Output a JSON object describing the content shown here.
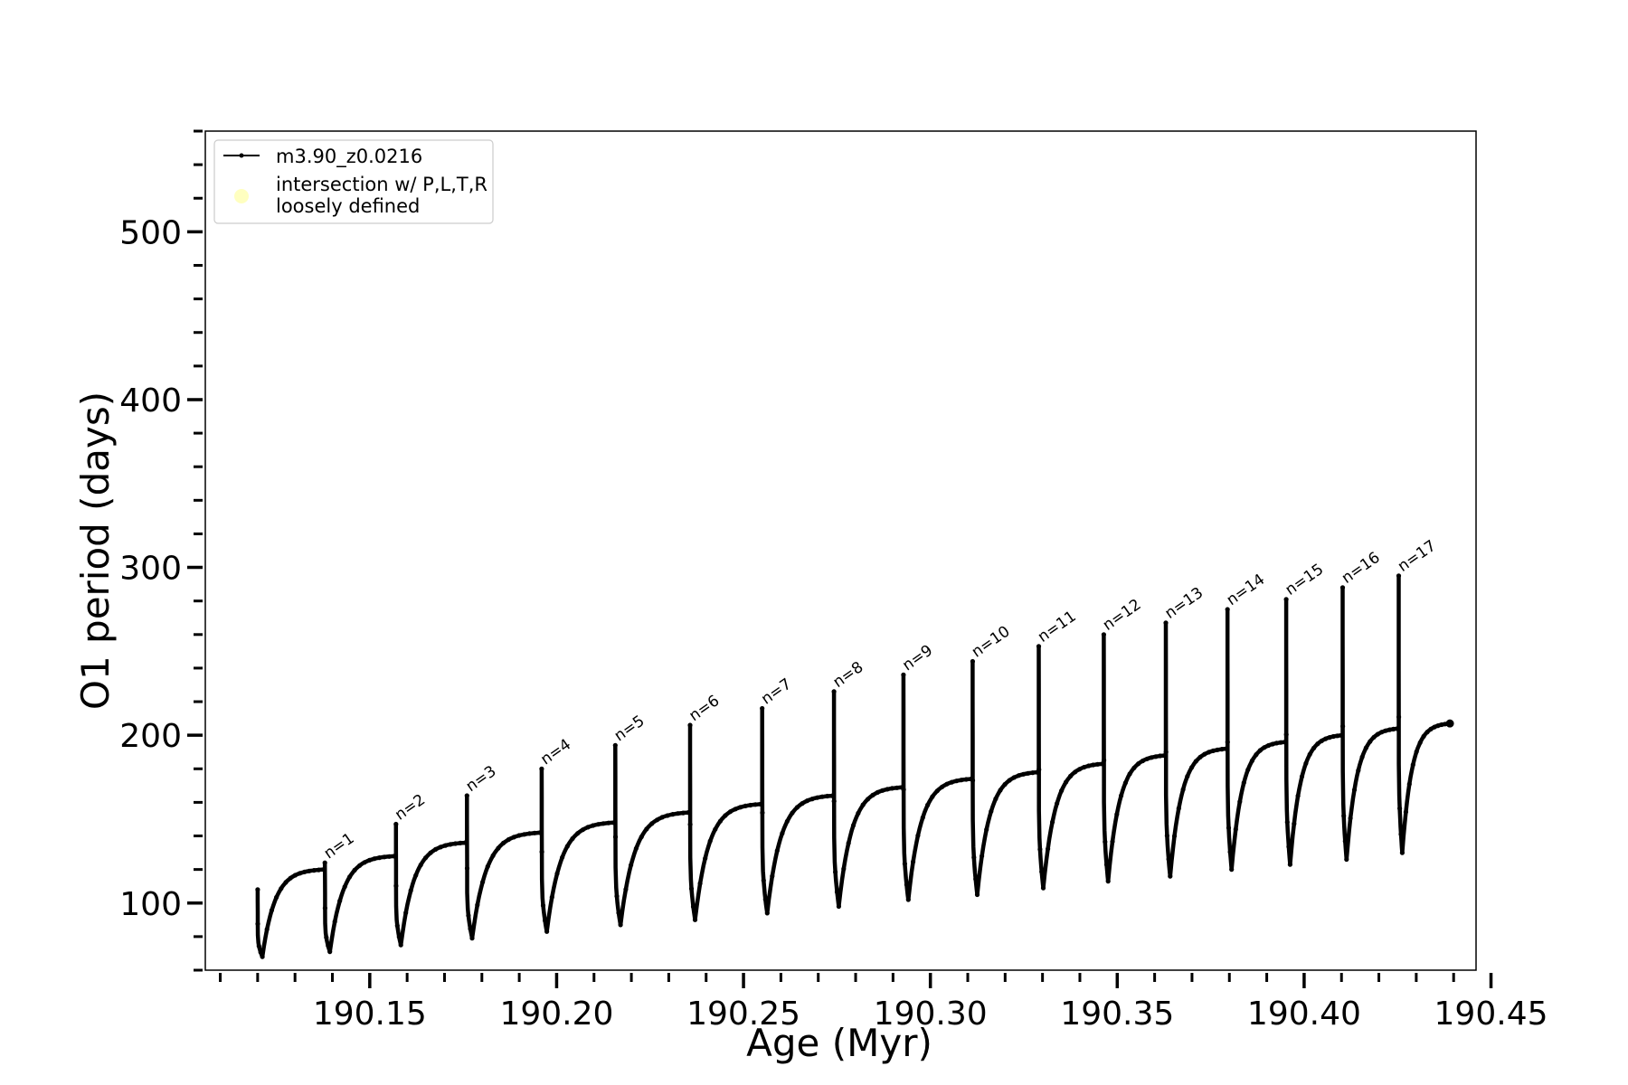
{
  "chart_data": {
    "type": "line",
    "title": "",
    "xlabel": "Age (Myr)",
    "ylabel": "O1 period (days)",
    "xlim": [
      190.106,
      190.446
    ],
    "ylim": [
      60,
      560
    ],
    "x_ticks": [
      "190.15",
      "190.20",
      "190.25",
      "190.30",
      "190.35",
      "190.40",
      "190.45"
    ],
    "y_ticks": [
      "100",
      "200",
      "300",
      "400",
      "500"
    ],
    "legend": {
      "position": "upper-left",
      "entries": [
        {
          "label": "m3.90_z0.0216",
          "marker": "line-dot",
          "color": "#000000"
        },
        {
          "label": "intersection w/ P,L,T,R\nloosely defined",
          "marker": "circle",
          "color": "#ffffc0"
        }
      ]
    },
    "series": [
      {
        "name": "m3.90_z0.0216",
        "color": "#000000",
        "cycles": [
          {
            "n": 0,
            "t_start": 190.12,
            "t_end": 190.138,
            "p_start": 108,
            "p_min": 68,
            "p_end": 120
          },
          {
            "n": 1,
            "t_start": 190.138,
            "t_end": 190.157,
            "p_start": 124,
            "p_min": 71,
            "p_end": 128
          },
          {
            "n": 2,
            "t_start": 190.157,
            "t_end": 190.176,
            "p_start": 147,
            "p_min": 75,
            "p_end": 136
          },
          {
            "n": 3,
            "t_start": 190.176,
            "t_end": 190.196,
            "p_start": 164,
            "p_min": 79,
            "p_end": 142
          },
          {
            "n": 4,
            "t_start": 190.196,
            "t_end": 190.2157,
            "p_start": 180,
            "p_min": 83,
            "p_end": 148
          },
          {
            "n": 5,
            "t_start": 190.2157,
            "t_end": 190.2357,
            "p_start": 194,
            "p_min": 87,
            "p_end": 154
          },
          {
            "n": 6,
            "t_start": 190.2357,
            "t_end": 190.255,
            "p_start": 206,
            "p_min": 90,
            "p_end": 159
          },
          {
            "n": 7,
            "t_start": 190.255,
            "t_end": 190.2742,
            "p_start": 216,
            "p_min": 94,
            "p_end": 164
          },
          {
            "n": 8,
            "t_start": 190.2742,
            "t_end": 190.2928,
            "p_start": 226,
            "p_min": 98,
            "p_end": 169
          },
          {
            "n": 9,
            "t_start": 190.2928,
            "t_end": 190.3113,
            "p_start": 236,
            "p_min": 102,
            "p_end": 174
          },
          {
            "n": 10,
            "t_start": 190.3113,
            "t_end": 190.329,
            "p_start": 244,
            "p_min": 105,
            "p_end": 178
          },
          {
            "n": 11,
            "t_start": 190.329,
            "t_end": 190.3464,
            "p_start": 253,
            "p_min": 109,
            "p_end": 183
          },
          {
            "n": 12,
            "t_start": 190.3464,
            "t_end": 190.363,
            "p_start": 260,
            "p_min": 113,
            "p_end": 188
          },
          {
            "n": 13,
            "t_start": 190.363,
            "t_end": 190.3795,
            "p_start": 267,
            "p_min": 116,
            "p_end": 192
          },
          {
            "n": 14,
            "t_start": 190.3795,
            "t_end": 190.3952,
            "p_start": 275,
            "p_min": 120,
            "p_end": 196
          },
          {
            "n": 15,
            "t_start": 190.3952,
            "t_end": 190.4103,
            "p_start": 281,
            "p_min": 123,
            "p_end": 200
          },
          {
            "n": 16,
            "t_start": 190.4103,
            "t_end": 190.4253,
            "p_start": 288,
            "p_min": 126,
            "p_end": 204
          },
          {
            "n": 17,
            "t_start": 190.4253,
            "t_end": 190.439,
            "p_start": 295,
            "p_min": 130,
            "p_end": 207
          }
        ]
      }
    ],
    "annotations": [
      {
        "text": "n=1",
        "x": 190.138,
        "y": 124
      },
      {
        "text": "n=2",
        "x": 190.157,
        "y": 147
      },
      {
        "text": "n=3",
        "x": 190.176,
        "y": 164
      },
      {
        "text": "n=4",
        "x": 190.196,
        "y": 180
      },
      {
        "text": "n=5",
        "x": 190.2157,
        "y": 194
      },
      {
        "text": "n=6",
        "x": 190.2357,
        "y": 206
      },
      {
        "text": "n=7",
        "x": 190.255,
        "y": 216
      },
      {
        "text": "n=8",
        "x": 190.2742,
        "y": 226
      },
      {
        "text": "n=9",
        "x": 190.2928,
        "y": 236
      },
      {
        "text": "n=10",
        "x": 190.3113,
        "y": 244
      },
      {
        "text": "n=11",
        "x": 190.329,
        "y": 253
      },
      {
        "text": "n=12",
        "x": 190.3464,
        "y": 260
      },
      {
        "text": "n=13",
        "x": 190.363,
        "y": 267
      },
      {
        "text": "n=14",
        "x": 190.3795,
        "y": 275
      },
      {
        "text": "n=15",
        "x": 190.3952,
        "y": 281
      },
      {
        "text": "n=16",
        "x": 190.4103,
        "y": 288
      },
      {
        "text": "n=17",
        "x": 190.4253,
        "y": 295
      }
    ],
    "grid": false
  }
}
